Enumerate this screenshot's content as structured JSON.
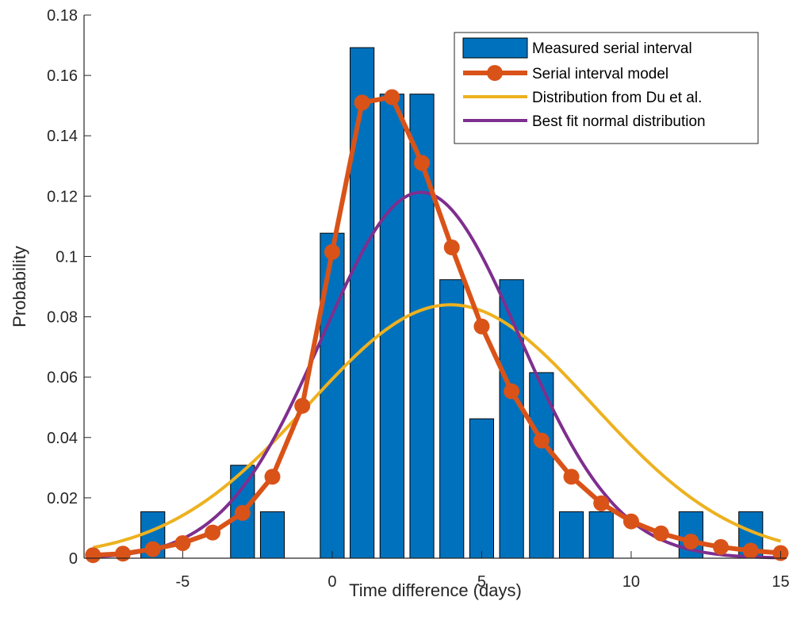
{
  "chart_data": {
    "type": "bar",
    "xlabel": "Time difference (days)",
    "ylabel": "Probability",
    "xlim": [
      -8.3,
      15.2
    ],
    "ylim": [
      0,
      0.18
    ],
    "xticks": [
      -5,
      0,
      5,
      10,
      15
    ],
    "xtick_labels": [
      "-5",
      "0",
      "5",
      "10",
      "15"
    ],
    "yticks": [
      0,
      0.02,
      0.04,
      0.06,
      0.08,
      0.1,
      0.12,
      0.14,
      0.16,
      0.18
    ],
    "ytick_labels": [
      "0",
      "0.02",
      "0.04",
      "0.06",
      "0.08",
      "0.1",
      "0.12",
      "0.14",
      "0.16",
      "0.18"
    ],
    "grid": false,
    "legend_position": "top-right",
    "bars": {
      "name": "Measured serial interval",
      "color": "#0072BD",
      "x": [
        -6,
        -3,
        -2,
        0,
        1,
        2,
        3,
        4,
        5,
        6,
        7,
        8,
        9,
        12,
        14
      ],
      "values": [
        0.0154,
        0.0308,
        0.0154,
        0.1077,
        0.1692,
        0.1538,
        0.1538,
        0.0923,
        0.0462,
        0.0923,
        0.0615,
        0.0154,
        0.0154,
        0.0154,
        0.0154
      ]
    },
    "series": [
      {
        "name": "Serial interval model",
        "color": "#D95319",
        "style": "line-markers",
        "x": [
          -8,
          -7,
          -6,
          -5,
          -4,
          -3,
          -2,
          -1,
          0,
          1,
          2,
          3,
          4,
          5,
          6,
          7,
          8,
          9,
          10,
          11,
          12,
          13,
          14,
          15
        ],
        "values": [
          0.001,
          0.0015,
          0.003,
          0.005,
          0.0085,
          0.015,
          0.027,
          0.0505,
          0.1015,
          0.151,
          0.1528,
          0.131,
          0.103,
          0.0768,
          0.0553,
          0.039,
          0.027,
          0.0182,
          0.0122,
          0.0082,
          0.0055,
          0.0037,
          0.0025,
          0.0017
        ]
      },
      {
        "name": "Distribution from Du et al.",
        "color": "#EDB120",
        "style": "line",
        "mean": 3.96,
        "sd": 4.75
      },
      {
        "name": "Best fit normal distribution",
        "color": "#7E2F8E",
        "style": "line",
        "mean": 2.97,
        "sd": 3.29
      }
    ]
  }
}
